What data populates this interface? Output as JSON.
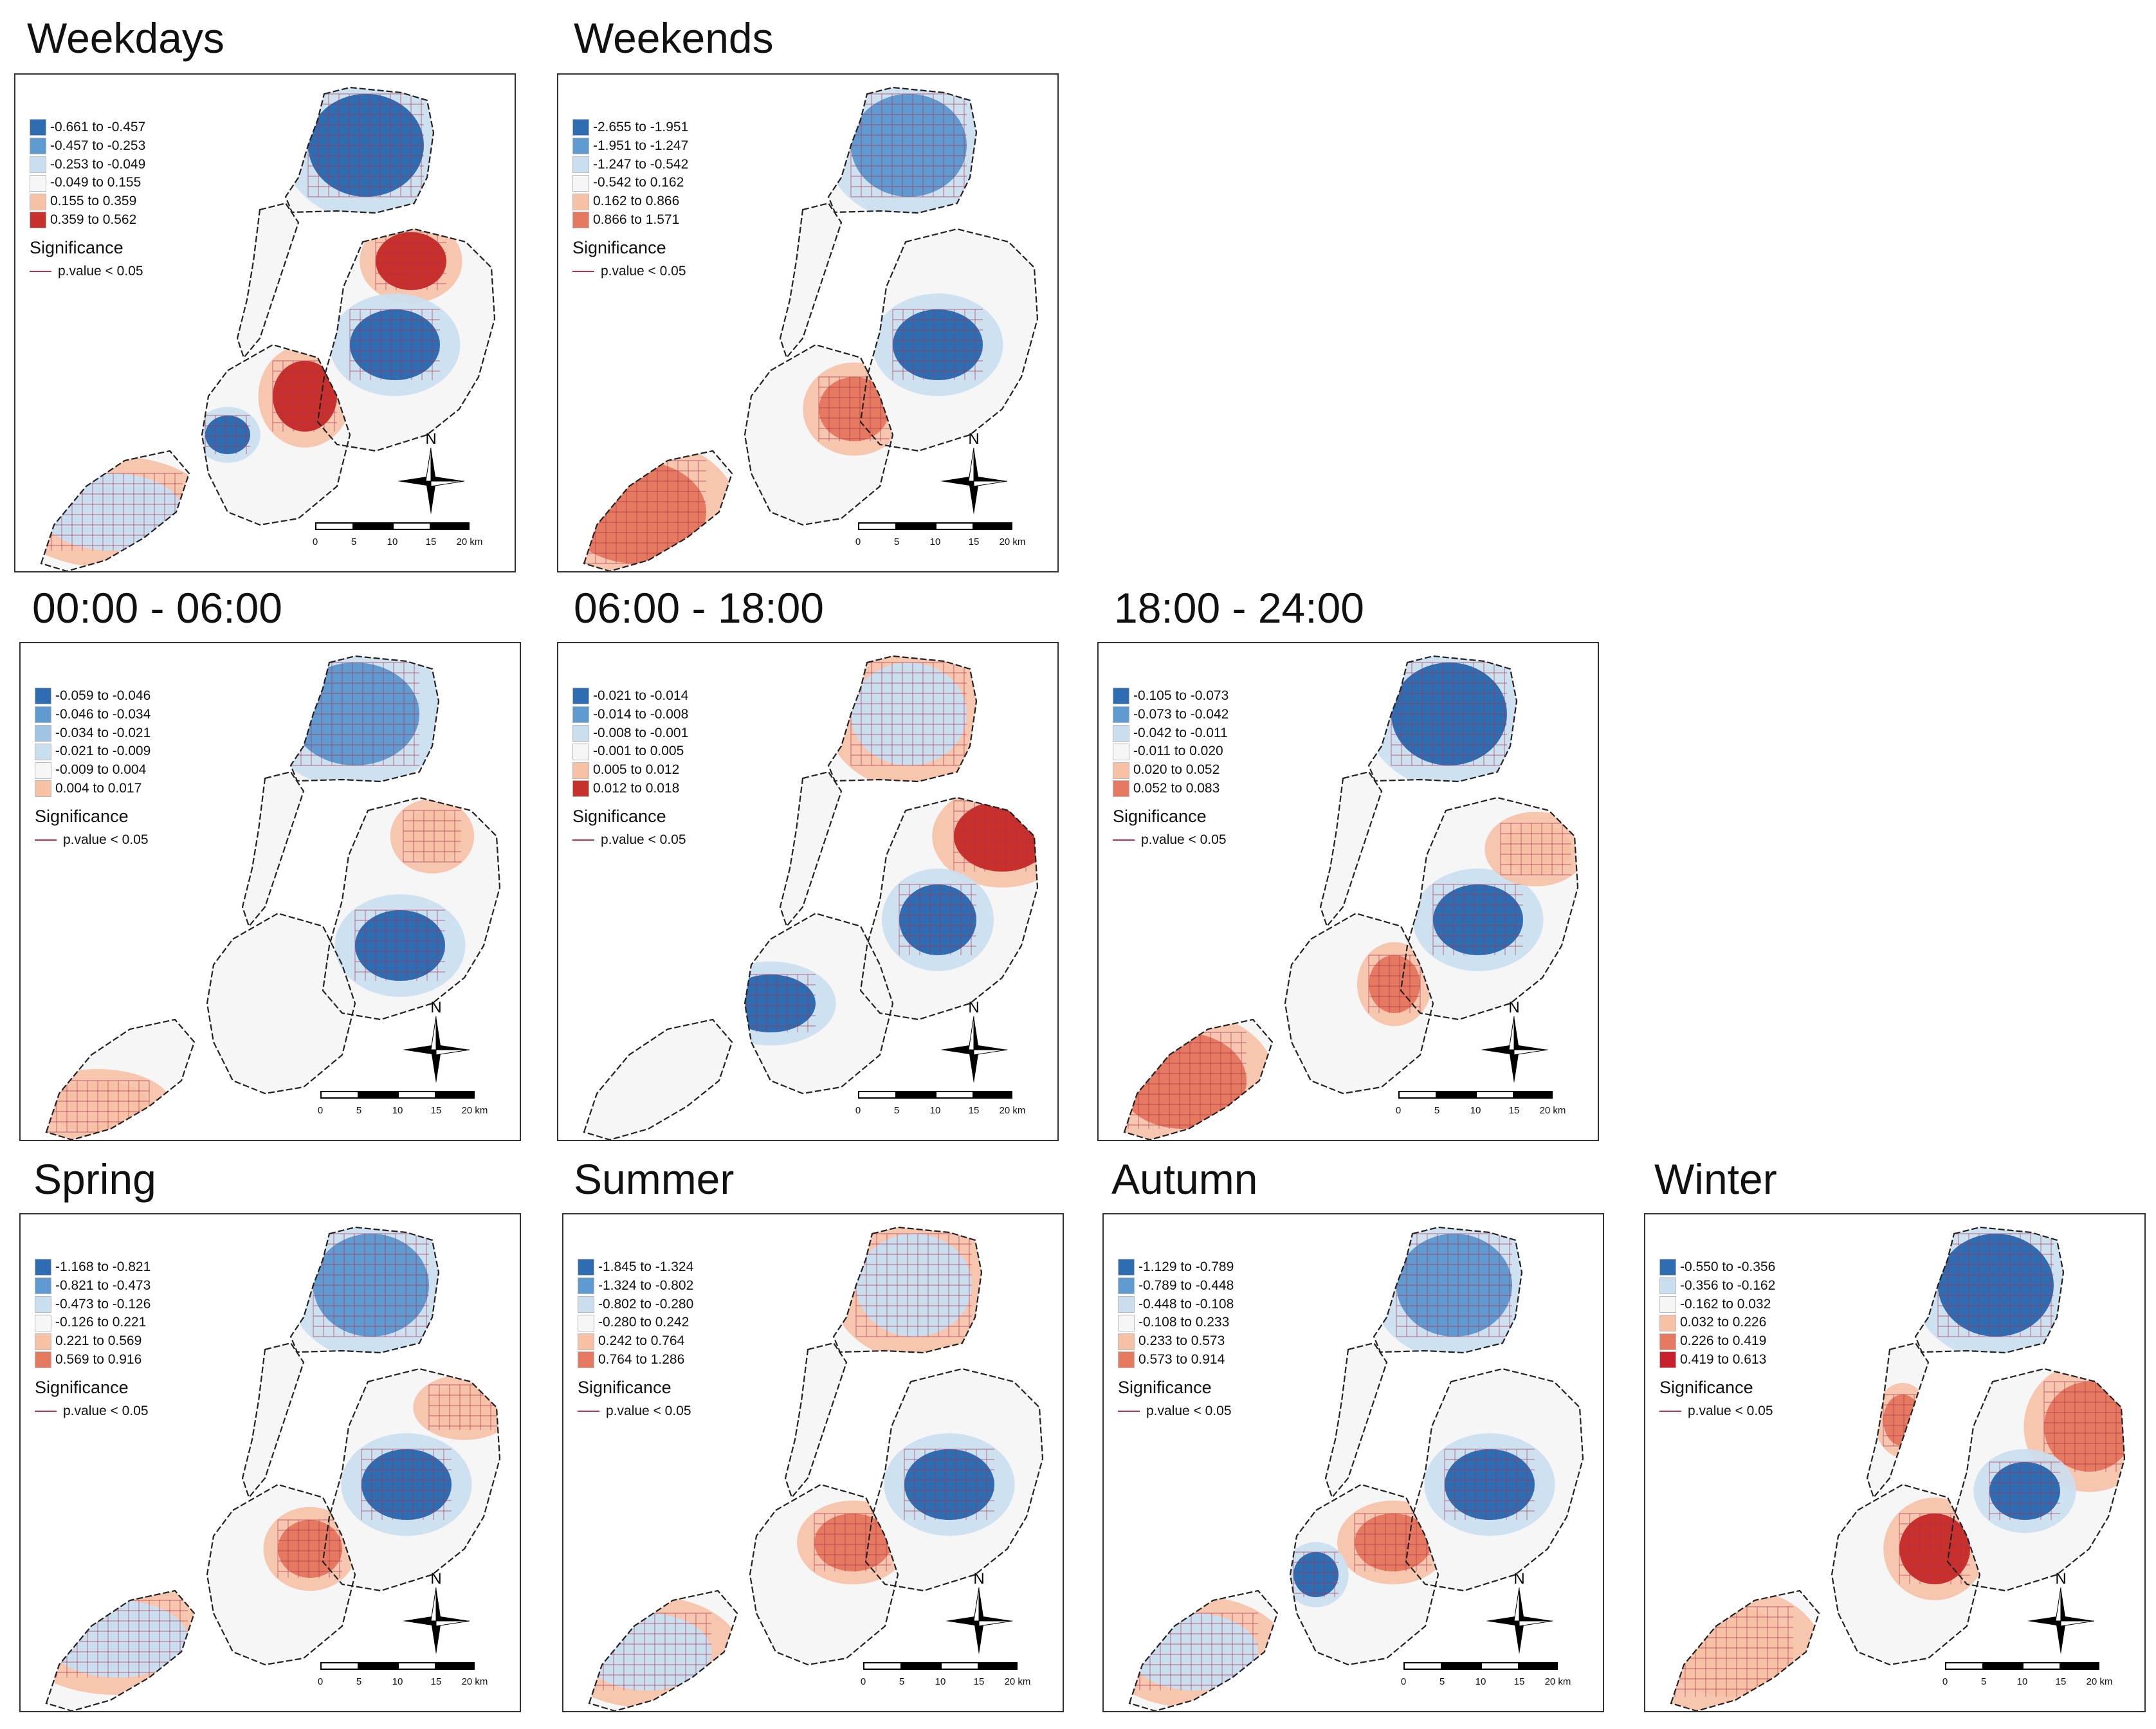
{
  "figure": {
    "significance_title": "Significance",
    "significance_label": "p.value < 0.05",
    "north_label": "N",
    "scale_labels": [
      "0",
      "5",
      "10",
      "15",
      "20 km"
    ],
    "colors": {
      "blue_dark": "#2f6db3",
      "blue_mid": "#5f9bd0",
      "blue_light": "#c9dff0",
      "neutral": "#f6f6f6",
      "red_light": "#f7c1a6",
      "red_mid": "#e67a60",
      "red_dark": "#c8302c",
      "outline": "#222222",
      "significance": "#b03050"
    }
  },
  "panels": [
    {
      "id": "weekdays",
      "title": "Weekdays",
      "legend": [
        "-0.661 to -0.457",
        "-0.457 to -0.253",
        "-0.253 to -0.049",
        "-0.049 to 0.155",
        "0.155 to 0.359",
        "0.359 to 0.562"
      ],
      "legend_colors": [
        "#2f6db3",
        "#5f9bd0",
        "#c9dff0",
        "#f6f6f6",
        "#f7c1a6",
        "#c8302c"
      ]
    },
    {
      "id": "weekends",
      "title": "Weekends",
      "legend": [
        "-2.655 to -1.951",
        "-1.951 to -1.247",
        "-1.247 to -0.542",
        "-0.542 to 0.162",
        "0.162 to 0.866",
        "0.866 to 1.571"
      ],
      "legend_colors": [
        "#2f6db3",
        "#5f9bd0",
        "#c9dff0",
        "#f6f6f6",
        "#f7c1a6",
        "#e67a60"
      ]
    },
    {
      "id": "night",
      "title": "00:00 - 06:00",
      "legend": [
        "-0.059 to -0.046",
        "-0.046 to -0.034",
        "-0.034 to -0.021",
        "-0.021 to -0.009",
        "-0.009 to 0.004",
        "0.004 to 0.017"
      ],
      "legend_colors": [
        "#2f6db3",
        "#5f9bd0",
        "#9fc4e4",
        "#c9dff0",
        "#f6f6f6",
        "#f7c1a6"
      ]
    },
    {
      "id": "day",
      "title": "06:00 - 18:00",
      "legend": [
        "-0.021 to -0.014",
        "-0.014 to -0.008",
        "-0.008 to -0.001",
        "-0.001 to 0.005",
        "0.005 to 0.012",
        "0.012 to 0.018"
      ],
      "legend_colors": [
        "#2f6db3",
        "#5f9bd0",
        "#c9dff0",
        "#f6f6f6",
        "#f7c1a6",
        "#c8302c"
      ]
    },
    {
      "id": "evening",
      "title": "18:00 - 24:00",
      "legend": [
        "-0.105 to -0.073",
        "-0.073 to -0.042",
        "-0.042 to -0.011",
        "-0.011 to 0.020",
        "0.020 to 0.052",
        "0.052 to 0.083"
      ],
      "legend_colors": [
        "#2f6db3",
        "#5f9bd0",
        "#c9dff0",
        "#f6f6f6",
        "#f7c1a6",
        "#e67a60"
      ]
    },
    {
      "id": "spring",
      "title": "Spring",
      "legend": [
        "-1.168 to -0.821",
        "-0.821 to -0.473",
        "-0.473 to -0.126",
        "-0.126 to 0.221",
        "0.221 to 0.569",
        "0.569 to 0.916"
      ],
      "legend_colors": [
        "#2f6db3",
        "#5f9bd0",
        "#c9dff0",
        "#f6f6f6",
        "#f7c1a6",
        "#e67a60"
      ]
    },
    {
      "id": "summer",
      "title": "Summer",
      "legend": [
        "-1.845 to -1.324",
        "-1.324 to -0.802",
        "-0.802 to -0.280",
        "-0.280 to 0.242",
        "0.242 to 0.764",
        "0.764 to 1.286"
      ],
      "legend_colors": [
        "#2f6db3",
        "#5f9bd0",
        "#c9dff0",
        "#f6f6f6",
        "#f7c1a6",
        "#e67a60"
      ]
    },
    {
      "id": "autumn",
      "title": "Autumn",
      "legend": [
        "-1.129 to -0.789",
        "-0.789 to -0.448",
        "-0.448 to -0.108",
        "-0.108 to 0.233",
        "0.233 to 0.573",
        "0.573 to 0.914"
      ],
      "legend_colors": [
        "#2f6db3",
        "#5f9bd0",
        "#c9dff0",
        "#f6f6f6",
        "#f7c1a6",
        "#e67a60"
      ]
    },
    {
      "id": "winter",
      "title": "Winter",
      "legend": [
        "-0.550 to -0.356",
        "-0.356 to -0.162",
        "-0.162 to 0.032",
        "0.032 to 0.226",
        "0.226 to 0.419",
        "0.419 to 0.613"
      ],
      "legend_colors": [
        "#2f6db3",
        "#c9dff0",
        "#f6f6f6",
        "#f7c1a6",
        "#e67a60",
        "#c8202c"
      ]
    }
  ]
}
